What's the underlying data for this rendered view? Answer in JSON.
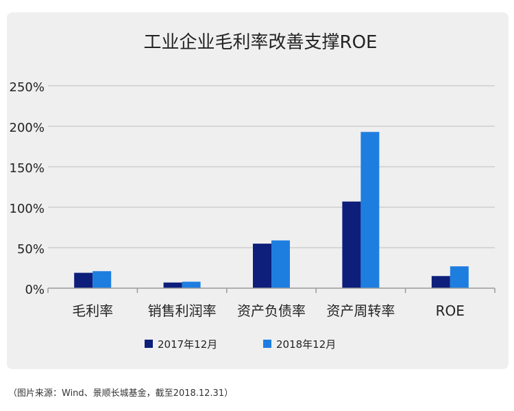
{
  "chart_data": {
    "type": "bar",
    "title": "工业企业毛利率改善支撑ROE",
    "categories": [
      "毛利率",
      "销售利润率",
      "资产负债率",
      "资产周转率",
      "ROE"
    ],
    "series": [
      {
        "name": "2017年12月",
        "values": [
          19,
          7,
          55,
          107,
          15
        ]
      },
      {
        "name": "2018年12月",
        "values": [
          21,
          8,
          59,
          193,
          27
        ]
      }
    ],
    "ylim": [
      0,
      250
    ],
    "yticks": [
      "0%",
      "50%",
      "100%",
      "150%",
      "200%",
      "250%"
    ],
    "ytick_values": [
      0,
      50,
      100,
      150,
      200,
      250
    ],
    "grid": true,
    "legend_position": "bottom",
    "xlabel": "",
    "ylabel": ""
  },
  "colors": {
    "series": [
      "#0d1f7a",
      "#1e7ee0"
    ],
    "grid": "#bdbdbd",
    "panel": "#efefef",
    "text": "#222222"
  },
  "source_note": "（图片来源：Wind、景顺长城基金，截至2018.12.31）"
}
